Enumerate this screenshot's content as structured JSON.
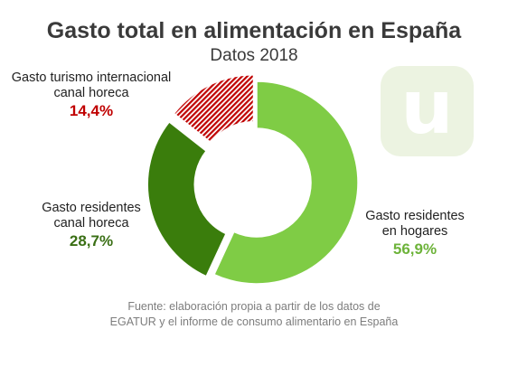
{
  "chart_data": {
    "type": "pie",
    "title": "Gasto total en alimentación en España",
    "subtitle": "Datos 2018",
    "categories": [
      "Gasto residentes en hogares",
      "Gasto residentes canal horeca",
      "Gasto turismo internacional canal horeca"
    ],
    "values": [
      56.9,
      28.7,
      14.4
    ],
    "value_labels": [
      "56,9%",
      "28,7%",
      "14,4%"
    ],
    "colors": [
      "#7fcc45",
      "#3a7d0c",
      "#c00000"
    ],
    "donut": true,
    "exploded": true,
    "hatched_slice": "Gasto turismo internacional canal horeca"
  },
  "labels": {
    "turismo_line1": "Gasto turismo internacional",
    "turismo_line2": "canal horeca",
    "horeca_line1": "Gasto residentes",
    "horeca_line2": "canal horeca",
    "hogares_line1": "Gasto residentes",
    "hogares_line2": "en hogares"
  },
  "logo": {
    "letter": "u"
  },
  "source": {
    "line1": "Fuente: elaboración propia a partir de los datos de",
    "line2": "EGATUR y el informe de consumo alimentario en España"
  }
}
